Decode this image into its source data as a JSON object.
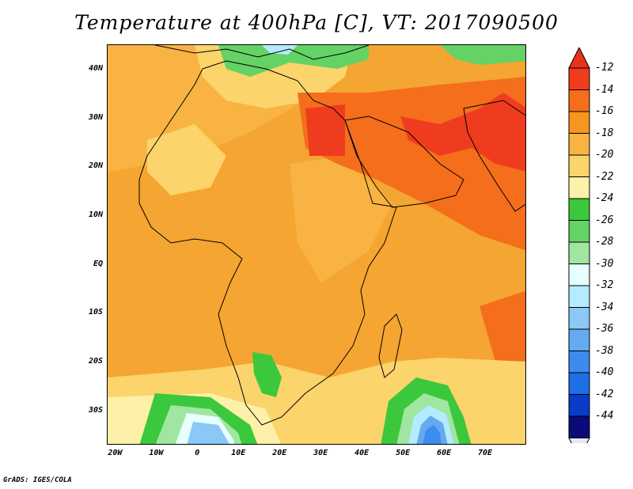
{
  "title": "Temperature at 400hPa [C], VT: 2017090500",
  "footer": "GrADS: IGES/COLA",
  "map": {
    "lon_range": [
      -22,
      80
    ],
    "lat_range": [
      -37,
      45
    ],
    "lat_ticks": [
      {
        "lat": 40,
        "label": "40N"
      },
      {
        "lat": 30,
        "label": "30N"
      },
      {
        "lat": 20,
        "label": "20N"
      },
      {
        "lat": 10,
        "label": "10N"
      },
      {
        "lat": 0,
        "label": "EQ"
      },
      {
        "lat": -10,
        "label": "10S"
      },
      {
        "lat": -20,
        "label": "20S"
      },
      {
        "lat": -30,
        "label": "30S"
      }
    ],
    "lon_ticks": [
      {
        "lon": -20,
        "label": "20W"
      },
      {
        "lon": -10,
        "label": "10W"
      },
      {
        "lon": 0,
        "label": "0"
      },
      {
        "lon": 10,
        "label": "10E"
      },
      {
        "lon": 20,
        "label": "20E"
      },
      {
        "lon": 30,
        "label": "30E"
      },
      {
        "lon": 40,
        "label": "40E"
      },
      {
        "lon": 50,
        "label": "50E"
      },
      {
        "lon": 60,
        "label": "60E"
      },
      {
        "lon": 70,
        "label": "70E"
      }
    ]
  },
  "colorbar": {
    "labels": [
      "-12",
      "-14",
      "-16",
      "-18",
      "-20",
      "-22",
      "-24",
      "-26",
      "-28",
      "-30",
      "-32",
      "-34",
      "-36",
      "-38",
      "-40",
      "-42",
      "-44"
    ],
    "colors": [
      "#f03c1e",
      "#f46e1c",
      "#f7951f",
      "#f9b343",
      "#fbd46b",
      "#fdf0a8",
      "#3cc83c",
      "#64d264",
      "#a0e6a0",
      "#e6ffff",
      "#b4ebff",
      "#8cc8f5",
      "#64aaf0",
      "#3c8cf0",
      "#1e6ee6",
      "#0a3cc8",
      "#0a0a78"
    ],
    "top_color": "#e8321e",
    "bottom_color": "#e6e6fa"
  },
  "fields": {
    "background": "#f5a531",
    "warm_core": "#f46e1c",
    "hottest": "#f03c1e",
    "mild": "#f9b343",
    "cool_yellow": "#fbd46b",
    "pale_yellow": "#fdf0a8",
    "green": "#3cc83c",
    "light_green": "#64d264",
    "pale_green": "#a0e6a0",
    "ice": "#e6ffff",
    "blue_light": "#b4ebff",
    "blue_mid": "#8cc8f5",
    "blue": "#64aaf0",
    "blue_dark": "#3c8cf0"
  },
  "coast_color": "#000000"
}
